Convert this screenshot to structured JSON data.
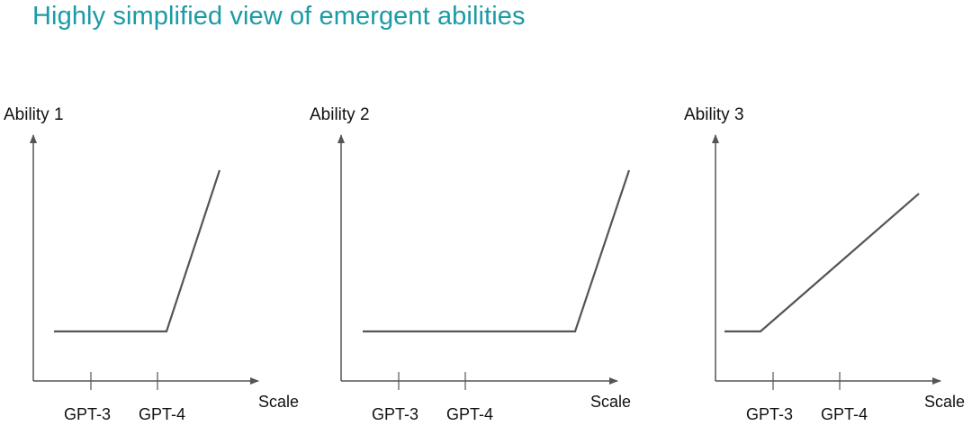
{
  "title": "Highly simplified view of emergent abilities",
  "x_axis_label": "Scale",
  "tick_labels": [
    "GPT-3",
    "GPT-4"
  ],
  "panels": [
    {
      "y_label": "Ability 1"
    },
    {
      "y_label": "Ability 2"
    },
    {
      "y_label": "Ability 3"
    }
  ],
  "colors": {
    "title": "#1a9ba6",
    "axis": "#555555",
    "curve": "#555555",
    "text": "#111111"
  }
}
